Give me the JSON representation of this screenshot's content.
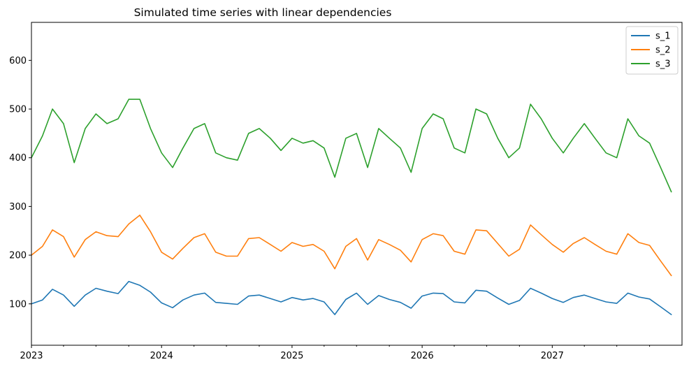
{
  "chart_data": {
    "type": "line",
    "title": "Simulated time series with linear dependencies",
    "xlabel": "",
    "ylabel": "",
    "x_range": [
      "2023-01-01",
      "2027-12-31"
    ],
    "ylim": [
      15,
      678
    ],
    "x_major_ticks": [
      "2023",
      "2024",
      "2025",
      "2026",
      "2027"
    ],
    "y_ticks": [
      100,
      200,
      300,
      400,
      500,
      600
    ],
    "grid": false,
    "legend_placement": "top-right",
    "series": [
      {
        "name": "s_1",
        "color": "#1f77b4",
        "x": [
          "2023-01-01",
          "2023-02-01",
          "2023-03-01",
          "2023-04-01",
          "2023-05-01",
          "2023-06-01",
          "2023-07-01",
          "2023-08-01",
          "2023-09-01",
          "2023-10-01",
          "2023-11-01",
          "2023-12-01",
          "2024-01-01",
          "2024-02-01",
          "2024-03-01",
          "2024-04-01",
          "2024-05-01",
          "2024-06-01",
          "2024-07-01",
          "2024-08-01",
          "2024-09-01",
          "2024-10-01",
          "2024-11-01",
          "2024-12-01",
          "2025-01-01",
          "2025-02-01",
          "2025-03-01",
          "2025-04-01",
          "2025-05-01",
          "2025-06-01",
          "2025-07-01",
          "2025-08-01",
          "2025-09-01",
          "2025-10-01",
          "2025-11-01",
          "2025-12-01",
          "2026-01-01",
          "2026-02-01",
          "2026-03-01",
          "2026-04-01",
          "2026-05-01",
          "2026-06-01",
          "2026-07-01",
          "2026-08-01",
          "2026-09-01",
          "2026-10-01",
          "2026-11-01",
          "2026-12-01",
          "2027-01-01",
          "2027-02-01",
          "2027-03-01",
          "2027-04-01",
          "2027-05-01",
          "2027-06-01",
          "2027-07-01",
          "2027-08-01",
          "2027-09-01",
          "2027-10-01",
          "2027-11-01",
          "2027-12-01"
        ],
        "values": [
          100,
          108,
          130,
          118,
          95,
          118,
          132,
          126,
          121,
          146,
          138,
          124,
          102,
          92,
          108,
          118,
          122,
          103,
          101,
          99,
          116,
          118,
          111,
          104,
          113,
          108,
          111,
          104,
          78,
          109,
          122,
          99,
          117,
          109,
          103,
          91,
          116,
          122,
          121,
          104,
          102,
          128,
          126,
          112,
          99,
          107,
          132,
          122,
          111,
          103,
          113,
          118,
          111,
          104,
          101,
          122,
          114,
          110,
          94,
          78
        ]
      },
      {
        "name": "s_2",
        "color": "#ff7f0e",
        "x": [
          "2023-01-01",
          "2023-02-01",
          "2023-03-01",
          "2023-04-01",
          "2023-05-01",
          "2023-06-01",
          "2023-07-01",
          "2023-08-01",
          "2023-09-01",
          "2023-10-01",
          "2023-11-01",
          "2023-12-01",
          "2024-01-01",
          "2024-02-01",
          "2024-03-01",
          "2024-04-01",
          "2024-05-01",
          "2024-06-01",
          "2024-07-01",
          "2024-08-01",
          "2024-09-01",
          "2024-10-01",
          "2024-11-01",
          "2024-12-01",
          "2025-01-01",
          "2025-02-01",
          "2025-03-01",
          "2025-04-01",
          "2025-05-01",
          "2025-06-01",
          "2025-07-01",
          "2025-08-01",
          "2025-09-01",
          "2025-10-01",
          "2025-11-01",
          "2025-12-01",
          "2026-01-01",
          "2026-02-01",
          "2026-03-01",
          "2026-04-01",
          "2026-05-01",
          "2026-06-01",
          "2026-07-01",
          "2026-08-01",
          "2026-09-01",
          "2026-10-01",
          "2026-11-01",
          "2026-12-01",
          "2027-01-01",
          "2027-02-01",
          "2027-03-01",
          "2027-04-01",
          "2027-05-01",
          "2027-06-01",
          "2027-07-01",
          "2027-08-01",
          "2027-09-01",
          "2027-10-01",
          "2027-11-01",
          "2027-12-01"
        ],
        "values": [
          200,
          218,
          252,
          238,
          196,
          232,
          248,
          240,
          238,
          264,
          282,
          248,
          206,
          192,
          214,
          236,
          244,
          206,
          198,
          198,
          234,
          236,
          222,
          208,
          226,
          218,
          222,
          208,
          172,
          218,
          234,
          190,
          232,
          222,
          210,
          186,
          232,
          244,
          240,
          208,
          202,
          252,
          250,
          224,
          198,
          212,
          262,
          242,
          222,
          206,
          224,
          236,
          222,
          208,
          202,
          244,
          226,
          220,
          188,
          158
        ]
      },
      {
        "name": "s_3",
        "color": "#2ca02c",
        "x": [
          "2023-01-01",
          "2023-02-01",
          "2023-03-01",
          "2023-04-01",
          "2023-05-01",
          "2023-06-01",
          "2023-07-01",
          "2023-08-01",
          "2023-09-01",
          "2023-10-01",
          "2023-11-01",
          "2023-12-01",
          "2024-01-01",
          "2024-02-01",
          "2024-03-01",
          "2024-04-01",
          "2024-05-01",
          "2024-06-01",
          "2024-07-01",
          "2024-08-01",
          "2024-09-01",
          "2024-10-01",
          "2024-11-01",
          "2024-12-01",
          "2025-01-01",
          "2025-02-01",
          "2025-03-01",
          "2025-04-01",
          "2025-05-01",
          "2025-06-01",
          "2025-07-01",
          "2025-08-01",
          "2025-09-01",
          "2025-10-01",
          "2025-11-01",
          "2025-12-01",
          "2026-01-01",
          "2026-02-01",
          "2026-03-01",
          "2026-04-01",
          "2026-05-01",
          "2026-06-01",
          "2026-07-01",
          "2026-08-01",
          "2026-09-01",
          "2026-10-01",
          "2026-11-01",
          "2026-12-01",
          "2027-01-01",
          "2027-02-01",
          "2027-03-01",
          "2027-04-01",
          "2027-05-01",
          "2027-06-01",
          "2027-07-01",
          "2027-08-01",
          "2027-09-01",
          "2027-10-01",
          "2027-11-01",
          "2027-12-01"
        ],
        "values": [
          400,
          445,
          500,
          470,
          390,
          460,
          490,
          470,
          480,
          520,
          520,
          460,
          410,
          380,
          420,
          460,
          470,
          410,
          400,
          395,
          450,
          460,
          440,
          415,
          440,
          430,
          435,
          420,
          360,
          440,
          450,
          380,
          460,
          440,
          420,
          370,
          460,
          490,
          480,
          420,
          410,
          500,
          490,
          440,
          400,
          420,
          510,
          480,
          440,
          410,
          440,
          470,
          440,
          410,
          400,
          480,
          445,
          430,
          380,
          330
        ]
      }
    ]
  }
}
